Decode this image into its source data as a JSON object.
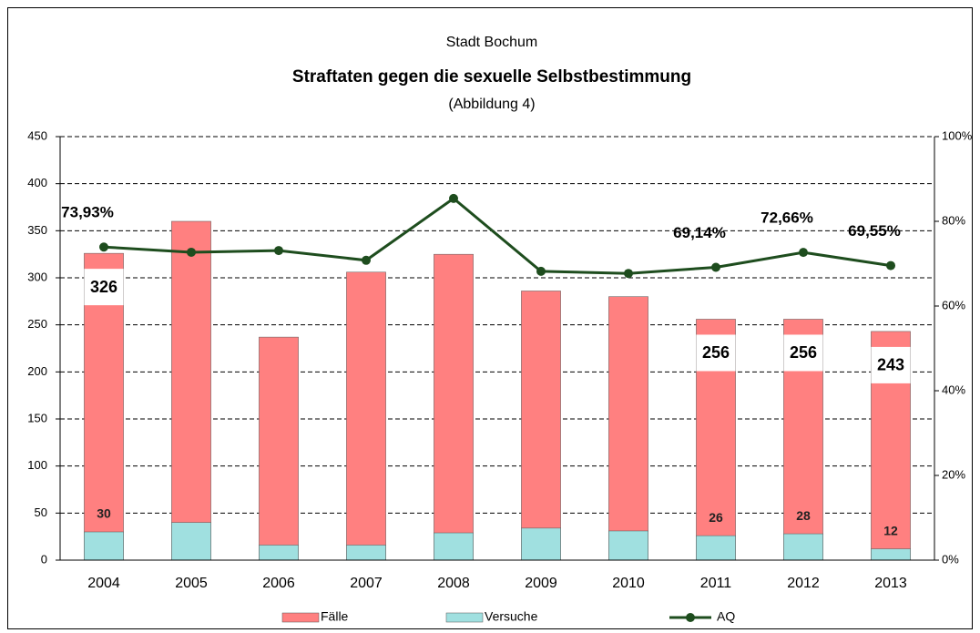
{
  "chart_data": {
    "type": "bar",
    "supertitle": "Stadt Bochum",
    "title": "Straftaten gegen die sexuelle Selbstbestimmung",
    "subtitle": "(Abbildung 4)",
    "categories": [
      "2004",
      "2005",
      "2006",
      "2007",
      "2008",
      "2009",
      "2010",
      "2011",
      "2012",
      "2013"
    ],
    "series": [
      {
        "name": "Fälle",
        "color": "#ff8080",
        "values": [
          326,
          360,
          237,
          306,
          325,
          286,
          280,
          256,
          256,
          243
        ],
        "value_labels": [
          "326",
          null,
          null,
          null,
          null,
          null,
          null,
          "256",
          "256",
          "243"
        ]
      },
      {
        "name": "Versuche",
        "color": "#a0e0e0",
        "values": [
          30,
          40,
          16,
          16,
          29,
          34,
          31,
          26,
          28,
          12
        ],
        "value_labels": [
          "30",
          null,
          null,
          null,
          null,
          null,
          null,
          "26",
          "28",
          "12"
        ]
      },
      {
        "name": "AQ",
        "type": "line",
        "axis": "y2",
        "color": "#1e4d1e",
        "values": [
          73.93,
          72.7,
          73.1,
          70.8,
          85.4,
          68.2,
          67.7,
          69.14,
          72.66,
          69.55
        ],
        "value_labels": [
          "73,93%",
          null,
          null,
          null,
          null,
          null,
          null,
          "69,14%",
          "72,66%",
          "69,55%"
        ]
      }
    ],
    "ylim": [
      0,
      450
    ],
    "yticks": [
      0,
      50,
      100,
      150,
      200,
      250,
      300,
      350,
      400,
      450
    ],
    "y2lim": [
      0,
      100
    ],
    "y2ticks": [
      {
        "value": 0,
        "label": "0%"
      },
      {
        "value": 20,
        "label": "20%"
      },
      {
        "value": 40,
        "label": "40%"
      },
      {
        "value": 60,
        "label": "60%"
      },
      {
        "value": 80,
        "label": "80%"
      },
      {
        "value": 100,
        "label": "100%"
      }
    ],
    "grid": true,
    "legend": "bottom"
  }
}
